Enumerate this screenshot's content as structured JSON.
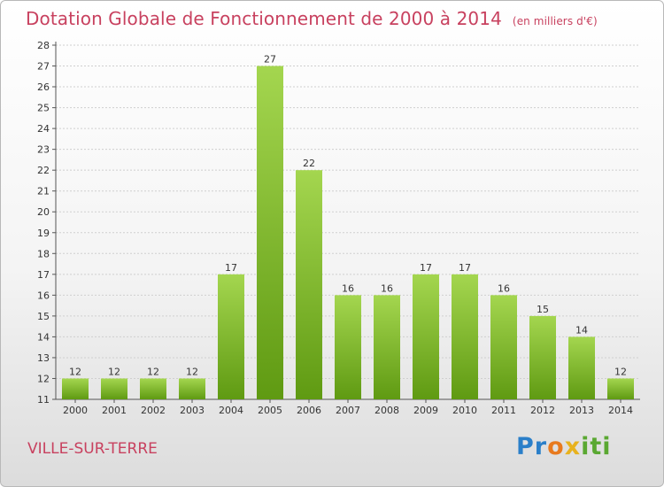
{
  "title": "Dotation Globale de Fonctionnement de 2000 à 2014",
  "subtitle": "(en milliers d'€)",
  "commune": "VILLE-SUR-TERRE",
  "brand": {
    "letters": [
      "P",
      "r",
      "o",
      "x",
      "i",
      "t",
      "i"
    ],
    "colors": [
      "#2a7fc9",
      "#2a7fc9",
      "#e87a1e",
      "#e8b21e",
      "#5aa832",
      "#5aa832",
      "#5aa832"
    ]
  },
  "colors": {
    "title": "#c8415f",
    "bar_top": "#a4d64f",
    "bar_bottom": "#5f9a12",
    "grid": "#cfcfcf"
  },
  "chart_data": {
    "type": "bar",
    "title": "Dotation Globale de Fonctionnement de 2000 à 2014",
    "subtitle": "(en milliers d'€)",
    "xlabel": "",
    "ylabel": "",
    "categories": [
      "2000",
      "2001",
      "2002",
      "2003",
      "2004",
      "2005",
      "2006",
      "2007",
      "2008",
      "2009",
      "2010",
      "2011",
      "2012",
      "2013",
      "2014"
    ],
    "values": [
      12,
      12,
      12,
      12,
      17,
      27,
      22,
      16,
      16,
      17,
      17,
      16,
      15,
      14,
      12
    ],
    "ylim": [
      11,
      28
    ],
    "yticks": [
      11,
      12,
      13,
      14,
      15,
      16,
      17,
      18,
      19,
      20,
      21,
      22,
      23,
      24,
      25,
      26,
      27,
      28
    ],
    "grid": true,
    "legend": "none"
  }
}
